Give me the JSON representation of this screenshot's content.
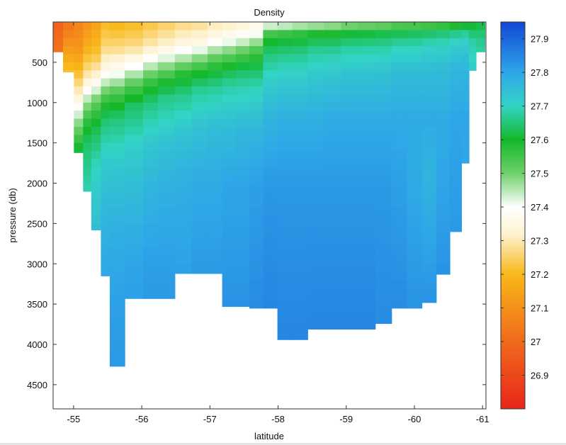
{
  "chart_data": {
    "type": "heatmap",
    "title": "Density",
    "xlabel": "latitude",
    "ylabel": "pressure (db)",
    "x_ticks": [
      -55,
      -56,
      -57,
      -58,
      -59,
      -60,
      -61
    ],
    "y_ticks": [
      500,
      1000,
      1500,
      2000,
      2500,
      3000,
      3500,
      4000,
      4500
    ],
    "xlim": [
      -54.7,
      -61.05
    ],
    "ylim": [
      4800,
      0
    ],
    "colorbar": {
      "ticks": [
        26.9,
        27,
        27.1,
        27.2,
        27.3,
        27.4,
        27.5,
        27.6,
        27.7,
        27.8,
        27.9
      ],
      "range": [
        26.8,
        27.95
      ],
      "colormap": [
        {
          "value": 26.8,
          "color": "#e8261a"
        },
        {
          "value": 27.0,
          "color": "#f06a1c"
        },
        {
          "value": 27.2,
          "color": "#f9b81a"
        },
        {
          "value": 27.32,
          "color": "#fdf3d2"
        },
        {
          "value": 27.4,
          "color": "#ffffff"
        },
        {
          "value": 27.5,
          "color": "#6fd06b"
        },
        {
          "value": 27.6,
          "color": "#14b82a"
        },
        {
          "value": 27.7,
          "color": "#33d4c4"
        },
        {
          "value": 27.8,
          "color": "#2fa6e8"
        },
        {
          "value": 27.95,
          "color": "#1147d6"
        }
      ]
    },
    "stations": [
      {
        "lat": -54.76,
        "bottom": 370,
        "profile": [
          [
            0,
            26.97
          ],
          [
            370,
            27.03
          ]
        ]
      },
      {
        "lat": -54.93,
        "bottom": 620,
        "profile": [
          [
            0,
            27.02
          ],
          [
            320,
            27.12
          ],
          [
            560,
            27.2
          ],
          [
            620,
            27.22
          ]
        ]
      },
      {
        "lat": -55.08,
        "bottom": 1620,
        "profile": [
          [
            0,
            27.06
          ],
          [
            350,
            27.12
          ],
          [
            650,
            27.22
          ],
          [
            950,
            27.34
          ],
          [
            1250,
            27.48
          ],
          [
            1620,
            27.62
          ]
        ]
      },
      {
        "lat": -55.2,
        "bottom": 2100,
        "profile": [
          [
            0,
            27.1
          ],
          [
            300,
            27.17
          ],
          [
            600,
            27.27
          ],
          [
            900,
            27.42
          ],
          [
            1200,
            27.56
          ],
          [
            1500,
            27.64
          ],
          [
            2100,
            27.69
          ]
        ]
      },
      {
        "lat": -55.32,
        "bottom": 2580,
        "profile": [
          [
            0,
            27.14
          ],
          [
            400,
            27.22
          ],
          [
            700,
            27.34
          ],
          [
            1000,
            27.52
          ],
          [
            1300,
            27.62
          ],
          [
            1800,
            27.7
          ],
          [
            2580,
            27.75
          ]
        ]
      },
      {
        "lat": -55.48,
        "bottom": 3150,
        "profile": [
          [
            0,
            27.2
          ],
          [
            300,
            27.26
          ],
          [
            600,
            27.36
          ],
          [
            950,
            27.55
          ],
          [
            1200,
            27.64
          ],
          [
            1700,
            27.72
          ],
          [
            2300,
            27.76
          ],
          [
            3150,
            27.8
          ]
        ]
      },
      {
        "lat": -55.58,
        "bottom": 4270,
        "profile": [
          [
            0,
            27.19
          ],
          [
            300,
            27.26
          ],
          [
            600,
            27.38
          ],
          [
            900,
            27.55
          ],
          [
            1200,
            27.65
          ],
          [
            1800,
            27.73
          ],
          [
            2600,
            27.78
          ],
          [
            3500,
            27.81
          ],
          [
            4270,
            27.82
          ]
        ]
      },
      {
        "lat": -55.92,
        "bottom": 3430,
        "profile": [
          [
            0,
            27.2
          ],
          [
            300,
            27.27
          ],
          [
            550,
            27.4
          ],
          [
            800,
            27.54
          ],
          [
            1050,
            27.64
          ],
          [
            1600,
            27.72
          ],
          [
            2200,
            27.76
          ],
          [
            3000,
            27.8
          ],
          [
            3430,
            27.81
          ]
        ]
      },
      {
        "lat": -56.12,
        "bottom": 3430,
        "profile": [
          [
            0,
            27.22
          ],
          [
            300,
            27.3
          ],
          [
            500,
            27.42
          ],
          [
            750,
            27.56
          ],
          [
            1000,
            27.65
          ],
          [
            1500,
            27.73
          ],
          [
            2100,
            27.77
          ],
          [
            3000,
            27.81
          ],
          [
            3430,
            27.82
          ]
        ]
      },
      {
        "lat": -56.35,
        "bottom": 3430,
        "profile": [
          [
            0,
            27.24
          ],
          [
            280,
            27.32
          ],
          [
            480,
            27.44
          ],
          [
            700,
            27.57
          ],
          [
            950,
            27.66
          ],
          [
            1500,
            27.74
          ],
          [
            2100,
            27.78
          ],
          [
            3000,
            27.81
          ],
          [
            3430,
            27.82
          ]
        ]
      },
      {
        "lat": -56.62,
        "bottom": 3120,
        "profile": [
          [
            0,
            27.26
          ],
          [
            260,
            27.34
          ],
          [
            460,
            27.46
          ],
          [
            650,
            27.58
          ],
          [
            900,
            27.66
          ],
          [
            1400,
            27.74
          ],
          [
            2000,
            27.78
          ],
          [
            3120,
            27.81
          ]
        ]
      },
      {
        "lat": -56.85,
        "bottom": 3120,
        "profile": [
          [
            0,
            27.27
          ],
          [
            250,
            27.35
          ],
          [
            430,
            27.47
          ],
          [
            620,
            27.59
          ],
          [
            850,
            27.67
          ],
          [
            1300,
            27.74
          ],
          [
            2000,
            27.79
          ],
          [
            3120,
            27.82
          ]
        ]
      },
      {
        "lat": -57.08,
        "bottom": 3120,
        "profile": [
          [
            0,
            27.29
          ],
          [
            220,
            27.37
          ],
          [
            400,
            27.49
          ],
          [
            600,
            27.6
          ],
          [
            820,
            27.67
          ],
          [
            1300,
            27.75
          ],
          [
            2000,
            27.79
          ],
          [
            3120,
            27.82
          ]
        ]
      },
      {
        "lat": -57.28,
        "bottom": 3530,
        "profile": [
          [
            0,
            27.3
          ],
          [
            200,
            27.38
          ],
          [
            380,
            27.5
          ],
          [
            580,
            27.61
          ],
          [
            800,
            27.68
          ],
          [
            1300,
            27.75
          ],
          [
            2000,
            27.8
          ],
          [
            3530,
            27.83
          ]
        ]
      },
      {
        "lat": -57.48,
        "bottom": 3530,
        "profile": [
          [
            0,
            27.32
          ],
          [
            190,
            27.4
          ],
          [
            360,
            27.51
          ],
          [
            560,
            27.62
          ],
          [
            780,
            27.68
          ],
          [
            1300,
            27.76
          ],
          [
            2000,
            27.8
          ],
          [
            3530,
            27.83
          ]
        ]
      },
      {
        "lat": -57.68,
        "bottom": 3550,
        "profile": [
          [
            0,
            27.34
          ],
          [
            180,
            27.42
          ],
          [
            330,
            27.53
          ],
          [
            550,
            27.62
          ],
          [
            800,
            27.69
          ],
          [
            1300,
            27.76
          ],
          [
            2000,
            27.81
          ],
          [
            3550,
            27.84
          ]
        ]
      },
      {
        "lat": -57.88,
        "bottom": 3550,
        "profile": [
          [
            0,
            27.38
          ],
          [
            90,
            27.48
          ],
          [
            180,
            27.58
          ],
          [
            400,
            27.65
          ],
          [
            700,
            27.71
          ],
          [
            1200,
            27.77
          ],
          [
            2000,
            27.82
          ],
          [
            3550,
            27.85
          ]
        ]
      },
      {
        "lat": -58.1,
        "bottom": 3940,
        "profile": [
          [
            0,
            27.39
          ],
          [
            90,
            27.49
          ],
          [
            180,
            27.59
          ],
          [
            400,
            27.66
          ],
          [
            700,
            27.72
          ],
          [
            1200,
            27.78
          ],
          [
            2000,
            27.82
          ],
          [
            3940,
            27.85
          ]
        ]
      },
      {
        "lat": -58.32,
        "bottom": 3940,
        "profile": [
          [
            0,
            27.4
          ],
          [
            80,
            27.5
          ],
          [
            170,
            27.59
          ],
          [
            380,
            27.66
          ],
          [
            700,
            27.72
          ],
          [
            1200,
            27.78
          ],
          [
            2000,
            27.82
          ],
          [
            3940,
            27.85
          ]
        ]
      },
      {
        "lat": -58.55,
        "bottom": 3810,
        "profile": [
          [
            0,
            27.41
          ],
          [
            80,
            27.51
          ],
          [
            160,
            27.6
          ],
          [
            360,
            27.67
          ],
          [
            680,
            27.73
          ],
          [
            1200,
            27.78
          ],
          [
            2000,
            27.82
          ],
          [
            3810,
            27.85
          ]
        ]
      },
      {
        "lat": -58.8,
        "bottom": 3810,
        "profile": [
          [
            0,
            27.42
          ],
          [
            80,
            27.52
          ],
          [
            160,
            27.6
          ],
          [
            350,
            27.67
          ],
          [
            650,
            27.73
          ],
          [
            1200,
            27.79
          ],
          [
            2000,
            27.82
          ],
          [
            3810,
            27.85
          ]
        ]
      },
      {
        "lat": -59.05,
        "bottom": 3810,
        "profile": [
          [
            0,
            27.43
          ],
          [
            70,
            27.53
          ],
          [
            150,
            27.61
          ],
          [
            340,
            27.68
          ],
          [
            650,
            27.74
          ],
          [
            1200,
            27.79
          ],
          [
            2000,
            27.82
          ],
          [
            3810,
            27.85
          ]
        ]
      },
      {
        "lat": -59.3,
        "bottom": 3810,
        "profile": [
          [
            0,
            27.44
          ],
          [
            70,
            27.54
          ],
          [
            140,
            27.61
          ],
          [
            330,
            27.68
          ],
          [
            640,
            27.74
          ],
          [
            1200,
            27.79
          ],
          [
            2000,
            27.82
          ],
          [
            3810,
            27.85
          ]
        ]
      },
      {
        "lat": -59.55,
        "bottom": 3740,
        "profile": [
          [
            0,
            27.45
          ],
          [
            70,
            27.55
          ],
          [
            140,
            27.62
          ],
          [
            320,
            27.68
          ],
          [
            620,
            27.74
          ],
          [
            1200,
            27.79
          ],
          [
            2000,
            27.82
          ],
          [
            3740,
            27.84
          ]
        ]
      },
      {
        "lat": -59.78,
        "bottom": 3550,
        "profile": [
          [
            0,
            27.46
          ],
          [
            60,
            27.56
          ],
          [
            130,
            27.62
          ],
          [
            300,
            27.69
          ],
          [
            600,
            27.75
          ],
          [
            1200,
            27.79
          ],
          [
            2000,
            27.81
          ],
          [
            3550,
            27.84
          ]
        ]
      },
      {
        "lat": -60.0,
        "bottom": 3550,
        "profile": [
          [
            0,
            27.47
          ],
          [
            60,
            27.56
          ],
          [
            130,
            27.63
          ],
          [
            300,
            27.69
          ],
          [
            600,
            27.75
          ],
          [
            1200,
            27.79
          ],
          [
            1900,
            27.79
          ],
          [
            3550,
            27.83
          ]
        ]
      },
      {
        "lat": -60.22,
        "bottom": 3480,
        "profile": [
          [
            0,
            27.48
          ],
          [
            60,
            27.57
          ],
          [
            120,
            27.63
          ],
          [
            290,
            27.7
          ],
          [
            580,
            27.75
          ],
          [
            1200,
            27.79
          ],
          [
            1900,
            27.77
          ],
          [
            3480,
            27.83
          ]
        ]
      },
      {
        "lat": -60.42,
        "bottom": 3130,
        "profile": [
          [
            0,
            27.5
          ],
          [
            60,
            27.58
          ],
          [
            120,
            27.64
          ],
          [
            280,
            27.7
          ],
          [
            560,
            27.75
          ],
          [
            1200,
            27.79
          ],
          [
            2000,
            27.8
          ],
          [
            3130,
            27.83
          ]
        ]
      },
      {
        "lat": -60.62,
        "bottom": 2600,
        "profile": [
          [
            0,
            27.52
          ],
          [
            60,
            27.6
          ],
          [
            110,
            27.65
          ],
          [
            260,
            27.71
          ],
          [
            540,
            27.76
          ],
          [
            1200,
            27.8
          ],
          [
            2600,
            27.82
          ]
        ]
      },
      {
        "lat": -60.76,
        "bottom": 1750,
        "profile": [
          [
            0,
            27.54
          ],
          [
            50,
            27.61
          ],
          [
            100,
            27.66
          ],
          [
            250,
            27.71
          ],
          [
            520,
            27.76
          ],
          [
            1200,
            27.8
          ],
          [
            1750,
            27.8
          ]
        ]
      },
      {
        "lat": -60.84,
        "bottom": 600,
        "profile": [
          [
            0,
            27.56
          ],
          [
            60,
            27.62
          ],
          [
            250,
            27.68
          ],
          [
            600,
            27.72
          ]
        ]
      },
      {
        "lat": -60.97,
        "bottom": 370,
        "profile": [
          [
            0,
            27.58
          ],
          [
            50,
            27.62
          ],
          [
            200,
            27.66
          ],
          [
            370,
            27.68
          ]
        ]
      }
    ]
  }
}
